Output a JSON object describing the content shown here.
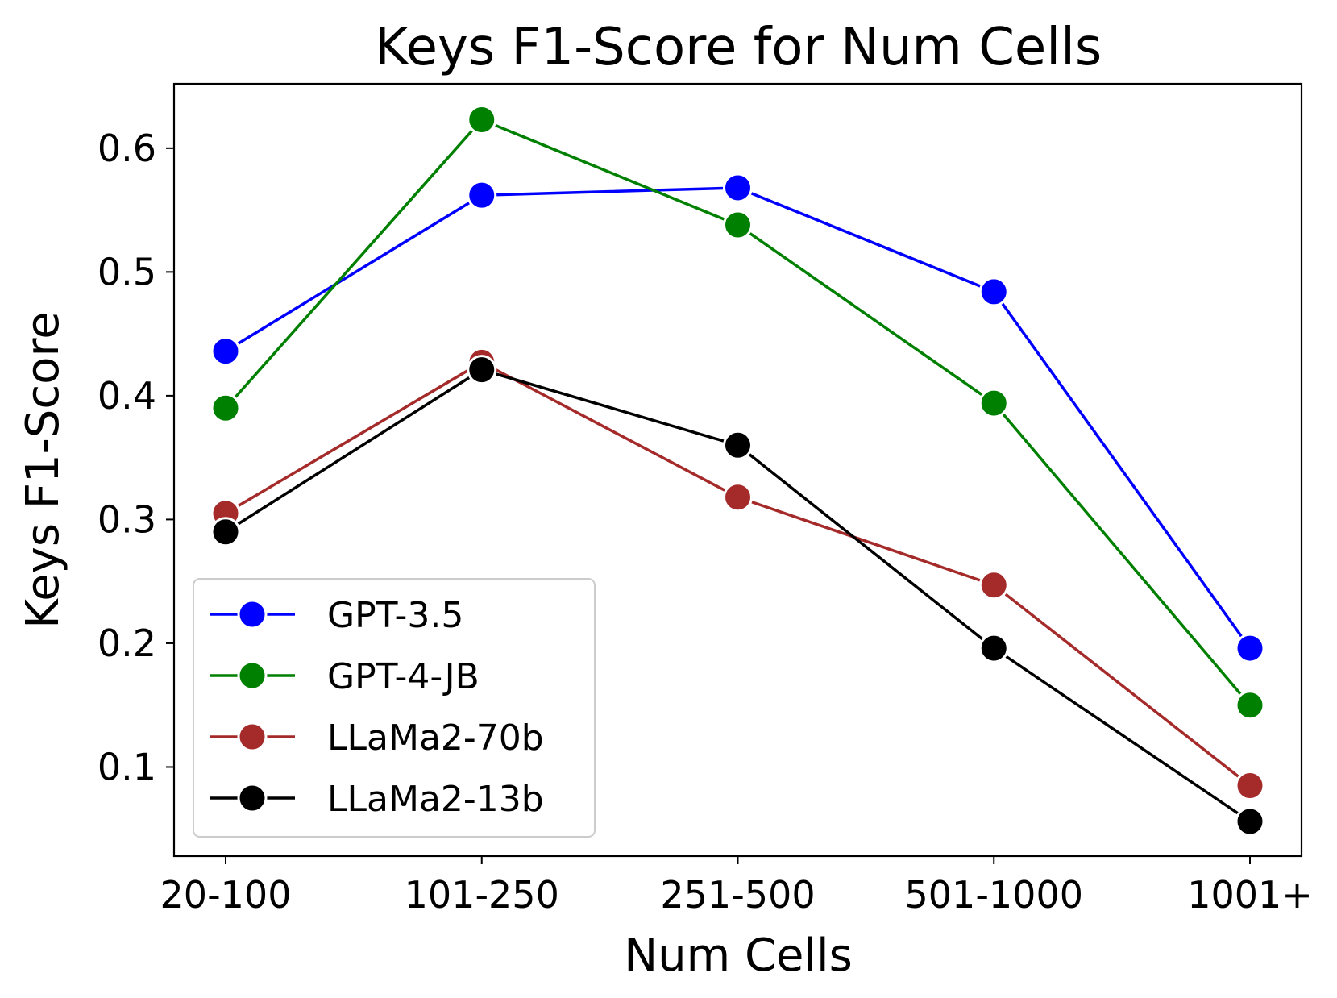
{
  "chart_data": {
    "type": "line",
    "title": "Keys F1-Score for Num Cells",
    "xlabel": "Num Cells",
    "ylabel": "Keys F1-Score",
    "categories": [
      "20-100",
      "101-250",
      "251-500",
      "501-1000",
      "1001+"
    ],
    "ylim": [
      0.028,
      0.652
    ],
    "yticks": [
      0.1,
      0.2,
      0.3,
      0.4,
      0.5,
      0.6
    ],
    "ytick_labels": [
      "0.1",
      "0.2",
      "0.3",
      "0.4",
      "0.5",
      "0.6"
    ],
    "grid": false,
    "legend_position": "lower-left",
    "series": [
      {
        "name": "GPT-3.5",
        "color": "#0000ff",
        "values": [
          0.436,
          0.562,
          0.568,
          0.484,
          0.196
        ]
      },
      {
        "name": "GPT-4-JB",
        "color": "#008000",
        "values": [
          0.39,
          0.623,
          0.538,
          0.394,
          0.15
        ]
      },
      {
        "name": "LLaMa2-70b",
        "color": "#a52a2a",
        "values": [
          0.305,
          0.427,
          0.318,
          0.247,
          0.085
        ]
      },
      {
        "name": "LLaMa2-13b",
        "color": "#000000",
        "values": [
          0.29,
          0.421,
          0.36,
          0.196,
          0.056
        ]
      }
    ]
  }
}
